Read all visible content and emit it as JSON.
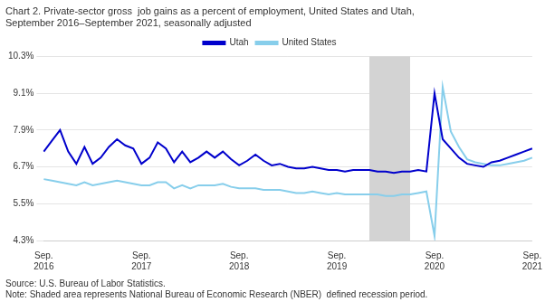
{
  "chart_data": {
    "type": "line",
    "title": [
      "Chart 2. Private-sector gross  job gains as a percent of employment, United States and Utah,",
      "September 2016–September 2021, seasonally adjusted"
    ],
    "source": "Source: U.S. Bureau of Labor Statistics.",
    "note": "Note: Shaded area represents National Bureau of Economic Research (NBER)  defined recession period.",
    "categories": [
      "Sep.\n2016",
      null,
      null,
      null,
      null,
      null,
      null,
      null,
      null,
      null,
      null,
      null,
      "Sep.\n2017",
      null,
      null,
      null,
      null,
      null,
      null,
      null,
      null,
      null,
      null,
      null,
      "Sep.\n2018",
      null,
      null,
      null,
      null,
      null,
      null,
      null,
      null,
      null,
      null,
      null,
      "Sep.\n2019",
      null,
      null,
      null,
      null,
      null,
      null,
      null,
      null,
      null,
      null,
      null,
      "Sep.\n2020",
      null,
      null,
      null,
      null,
      null,
      null,
      null,
      null,
      null,
      null,
      null,
      "Sep.\n2021"
    ],
    "series": [
      {
        "name": "Utah",
        "color": "#0000cc",
        "values": [
          7.2,
          7.55,
          7.9,
          7.2,
          6.8,
          7.35,
          6.8,
          7.0,
          7.35,
          7.6,
          7.4,
          7.3,
          6.8,
          7.0,
          7.5,
          7.3,
          6.85,
          7.2,
          6.85,
          7.0,
          7.2,
          7.0,
          7.2,
          6.95,
          6.75,
          6.9,
          7.1,
          6.9,
          6.75,
          6.8,
          6.7,
          6.65,
          6.65,
          6.7,
          6.65,
          6.6,
          6.6,
          6.55,
          6.6,
          6.6,
          6.6,
          6.55,
          6.55,
          6.5,
          6.55,
          6.55,
          6.6,
          6.55,
          9.1,
          7.6,
          7.3,
          7.0,
          6.8,
          6.75,
          6.7,
          6.85,
          6.9,
          7.0,
          7.1,
          7.2,
          7.3
        ]
      },
      {
        "name": "United States",
        "color": "#87ceeb",
        "values": [
          6.3,
          6.25,
          6.2,
          6.15,
          6.1,
          6.2,
          6.1,
          6.15,
          6.2,
          6.25,
          6.2,
          6.15,
          6.1,
          6.1,
          6.2,
          6.2,
          6.0,
          6.1,
          6.0,
          6.1,
          6.1,
          6.1,
          6.15,
          6.05,
          6.0,
          6.0,
          6.0,
          5.95,
          5.95,
          5.95,
          5.9,
          5.85,
          5.85,
          5.9,
          5.85,
          5.8,
          5.85,
          5.8,
          5.8,
          5.8,
          5.8,
          5.8,
          5.75,
          5.75,
          5.8,
          5.8,
          5.85,
          5.9,
          4.45,
          9.3,
          7.85,
          7.35,
          6.95,
          6.85,
          6.8,
          6.75,
          6.75,
          6.8,
          6.85,
          6.9,
          7.0
        ]
      }
    ],
    "recession": {
      "start": 40,
      "end": 45,
      "color": "#d3d3d3"
    },
    "ylim": [
      4.3,
      10.3
    ],
    "yticks": [
      {
        "value": 4.3,
        "label": "4.3%"
      },
      {
        "value": 5.5,
        "label": "5.5%"
      },
      {
        "value": 6.7,
        "label": "6.7%"
      },
      {
        "value": 7.9,
        "label": "7.9%"
      },
      {
        "value": 9.1,
        "label": "9.1%"
      },
      {
        "value": 10.3,
        "label": "10.3%"
      }
    ],
    "grid": true,
    "legend": "top"
  }
}
